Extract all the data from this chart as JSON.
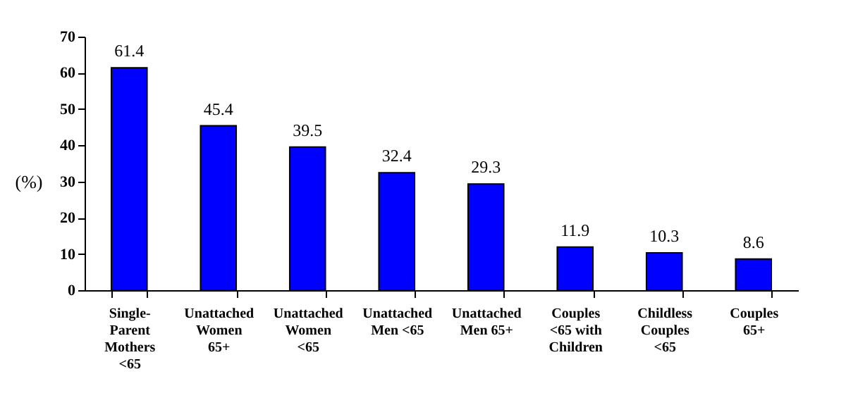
{
  "chart_data": {
    "type": "bar",
    "ylabel": "(%)",
    "categories": [
      "Single-\nParent\nMothers\n<65",
      "Unattached\nWomen\n65+",
      "Unattached\nWomen\n<65",
      "Unattached\nMen <65",
      "Unattached\nMen 65+",
      "Couples\n<65 with\nChildren",
      "Childless\nCouples\n<65",
      "Couples\n65+"
    ],
    "values": [
      61.4,
      45.4,
      39.5,
      32.4,
      29.3,
      11.9,
      10.3,
      8.6
    ],
    "color": "#0000ff",
    "ylim": [
      0,
      70
    ],
    "yticks": [
      0,
      10,
      20,
      30,
      40,
      50,
      60,
      70
    ],
    "data_labels": true,
    "grid": false
  }
}
